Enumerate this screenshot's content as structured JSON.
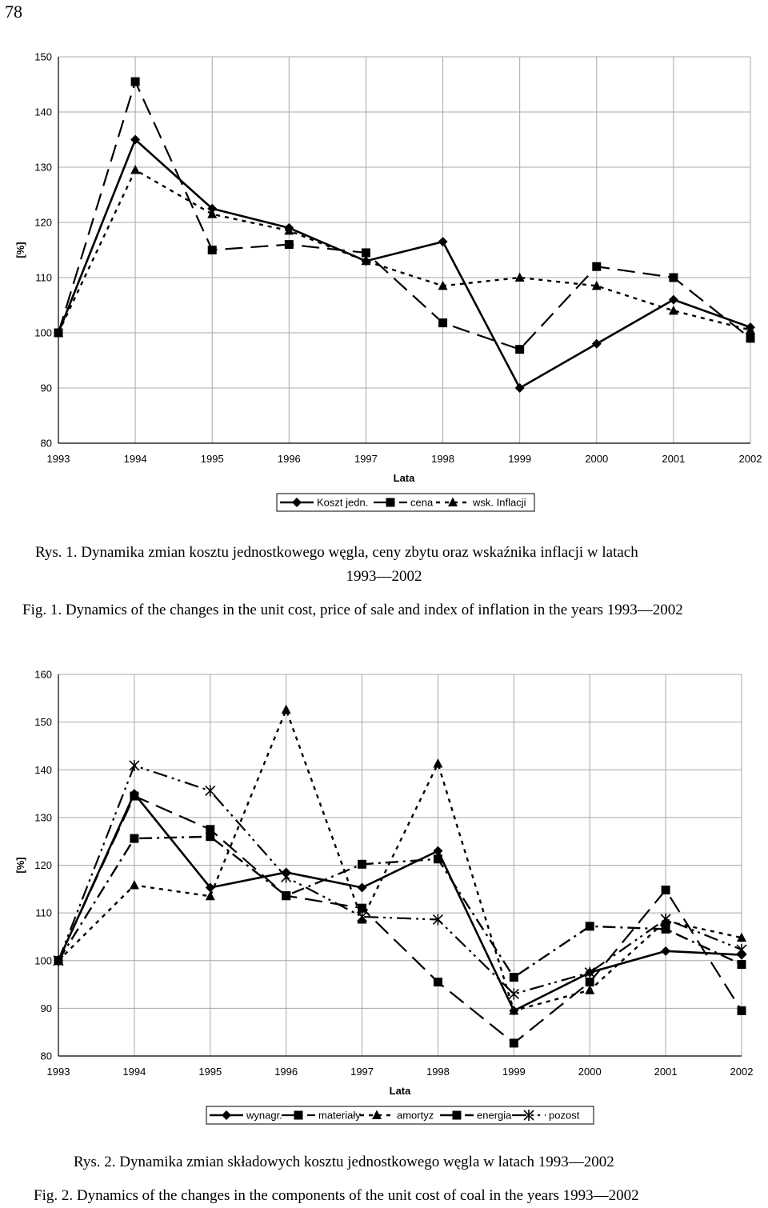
{
  "page_number": "78",
  "chart_data": [
    {
      "type": "line",
      "title": "",
      "xlabel": "Lata",
      "ylabel": "[%]",
      "ylim": [
        80,
        150
      ],
      "yticks": [
        80,
        90,
        100,
        110,
        120,
        130,
        140,
        150
      ],
      "grid": true,
      "legend_position": "bottom-center",
      "categories": [
        "1993",
        "1994",
        "1995",
        "1996",
        "1997",
        "1998",
        "1999",
        "2000",
        "2001",
        "2002"
      ],
      "series": [
        {
          "name": "Koszt jedn.",
          "dash": "solid",
          "marker": "diamond",
          "values": [
            100,
            135,
            122.5,
            119,
            113,
            116.5,
            90,
            98,
            106,
            101
          ]
        },
        {
          "name": "cena",
          "dash": "longdash",
          "marker": "square",
          "values": [
            100,
            145.5,
            115,
            116,
            114.5,
            101.8,
            97,
            112,
            110,
            99
          ]
        },
        {
          "name": "wsk. Inflacji",
          "dash": "shortdash",
          "marker": "triangle",
          "values": [
            100,
            129.5,
            121.5,
            118.5,
            113,
            108.5,
            110,
            108.5,
            104,
            100.5
          ]
        }
      ]
    },
    {
      "type": "line",
      "title": "",
      "xlabel": "Lata",
      "ylabel": "[%]",
      "ylim": [
        80,
        160
      ],
      "yticks": [
        80,
        90,
        100,
        110,
        120,
        130,
        140,
        150,
        160
      ],
      "grid": true,
      "legend_position": "bottom-center",
      "categories": [
        "1993",
        "1994",
        "1995",
        "1996",
        "1997",
        "1998",
        "1999",
        "2000",
        "2001",
        "2002"
      ],
      "series": [
        {
          "name": "wynagr.",
          "dash": "solid",
          "marker": "diamond",
          "values": [
            100,
            135,
            115.3,
            118.5,
            115.3,
            123,
            89.5,
            97.5,
            102,
            101.2
          ]
        },
        {
          "name": "materiały",
          "dash": "longdash",
          "marker": "square",
          "values": [
            100,
            134.5,
            127.5,
            113.6,
            111,
            95.5,
            82.7,
            95.5,
            114.8,
            89.5
          ]
        },
        {
          "name": "amortyz",
          "dash": "shortdash",
          "marker": "triangle",
          "values": [
            100,
            115.8,
            113.5,
            152.6,
            108.6,
            141.3,
            89.5,
            93.8,
            108.3,
            104.8
          ]
        },
        {
          "name": "energia",
          "dash": "dashdot",
          "marker": "square",
          "values": [
            100,
            125.6,
            126,
            113.6,
            120.2,
            121.3,
            96.5,
            107.2,
            106.6,
            99.2
          ]
        },
        {
          "name": "pozost",
          "dash": "dashdotdot",
          "marker": "star",
          "values": [
            100,
            140.9,
            135.6,
            117.5,
            109.2,
            108.6,
            93,
            97.5,
            108.7,
            102.3
          ]
        }
      ]
    }
  ],
  "captions": {
    "fig1_pl_line1": "Rys. 1. Dynamika zmian kosztu jednostkowego węgla, ceny zbytu oraz wskaźnika inflacji w latach",
    "fig1_pl_line2": "1993—2002",
    "fig1_en": "Fig. 1. Dynamics of the changes in the unit cost, price of sale and index of inflation in the years 1993—2002",
    "fig2_pl": "Rys. 2. Dynamika zmian składowych kosztu jednostkowego węgla w latach 1993—2002",
    "fig2_en": "Fig. 2. Dynamics of the changes in the components of the unit cost of coal in the years 1993—2002"
  }
}
